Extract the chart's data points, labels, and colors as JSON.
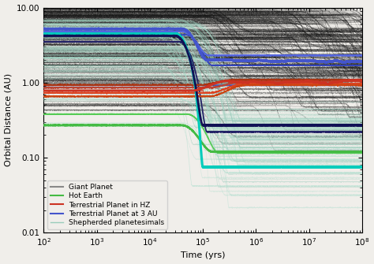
{
  "title": "",
  "xlabel": "Time (yrs)",
  "ylabel": "Orbital Distance (AU)",
  "ylim": [
    0.01,
    10.0
  ],
  "xlim": [
    100,
    100000000.0
  ],
  "background_color": "#f0eeea",
  "giant_planet_color": "#888888",
  "hot_earth_color": "#22ccaa",
  "green_color": "#44aa44",
  "terrestrial_hz_color": "#cc3322",
  "terrestrial_3au_color": "#3333aa",
  "black_color": "#111111",
  "navy_color": "#1a1a55",
  "teal_bg_color": "#88ddcc",
  "gray_bg_color": "#888888"
}
